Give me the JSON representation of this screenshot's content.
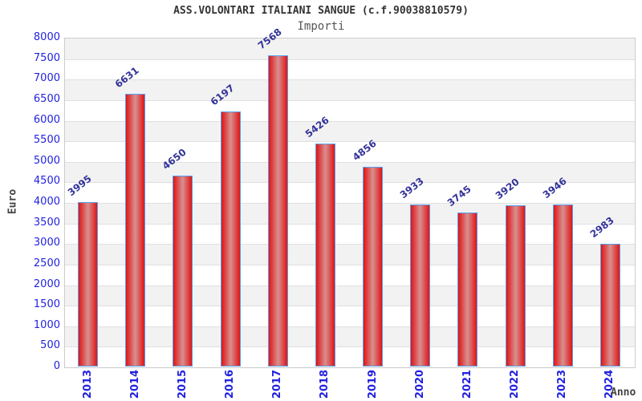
{
  "header": {
    "title": "ASS.VOLONTARI ITALIANI SANGUE (c.f.90038810579)",
    "subtitle": "Importi"
  },
  "chart_data": {
    "type": "bar",
    "title": "ASS.VOLONTARI ITALIANI SANGUE (c.f.90038810579)",
    "subtitle": "Importi",
    "categories": [
      "2013",
      "2014",
      "2015",
      "2016",
      "2017",
      "2018",
      "2019",
      "2020",
      "2021",
      "2022",
      "2023",
      "2024"
    ],
    "values": [
      3995,
      6631,
      4650,
      6197,
      7568,
      5426,
      4856,
      3933,
      3745,
      3920,
      3946,
      2983
    ],
    "xlabel": "Anno",
    "ylabel": "Euro",
    "ylim": [
      0,
      8000
    ],
    "ytick_step": 500,
    "grid": true,
    "legend": "none",
    "colors": {
      "bar_edge": "#e01414",
      "bar_center": "#d89090",
      "bar_border": "#55a0f0",
      "band_even": "#f2f2f2",
      "band_odd": "#ffffff",
      "gridline": "#e0e0e0",
      "plot_border": "#cccccc",
      "tick_label": "#2222e0",
      "value_label": "#333399",
      "title_text": "#333333",
      "subtitle_text": "#555555",
      "axis_title_text": "#444444"
    }
  }
}
